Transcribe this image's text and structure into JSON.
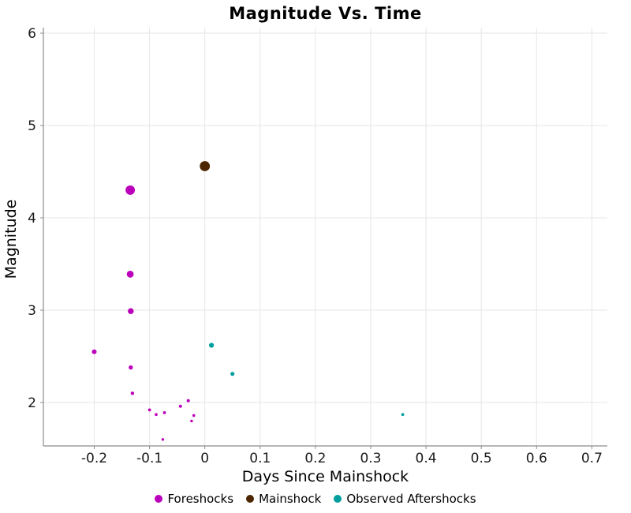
{
  "chart_data": {
    "type": "scatter",
    "title": "Magnitude Vs. Time",
    "xlabel": "Days Since Mainshock",
    "ylabel": "Magnitude",
    "xlim": [
      -0.292,
      0.728
    ],
    "ylim": [
      1.53,
      6.06
    ],
    "x_ticks": [
      -0.2,
      -0.1,
      0,
      0.1,
      0.2,
      0.3,
      0.4,
      0.5,
      0.6,
      0.7
    ],
    "y_ticks": [
      2,
      3,
      4,
      5,
      6
    ],
    "grid": true,
    "legend_position": "bottom-center",
    "marker_size_scales_with_magnitude": true,
    "colors": {
      "grid": "#e6e6e6",
      "axis": "#8c8c8c",
      "tick_text": "#1a1a1a"
    },
    "series": [
      {
        "name": "Foreshocks",
        "color": "#bb00bb",
        "points": [
          [
            -0.2,
            2.55
          ],
          [
            -0.135,
            4.3
          ],
          [
            -0.135,
            3.39
          ],
          [
            -0.134,
            2.99
          ],
          [
            -0.134,
            2.38
          ],
          [
            -0.131,
            2.1
          ],
          [
            -0.1,
            1.92
          ],
          [
            -0.088,
            1.87
          ],
          [
            -0.076,
            1.6
          ],
          [
            -0.073,
            1.89
          ],
          [
            -0.044,
            1.96
          ],
          [
            -0.03,
            2.02
          ],
          [
            -0.024,
            1.8
          ],
          [
            -0.02,
            1.86
          ]
        ]
      },
      {
        "name": "Mainshock",
        "color": "#4d2600",
        "points": [
          [
            0.0,
            4.56
          ]
        ]
      },
      {
        "name": "Observed Aftershocks",
        "color": "#009e9e",
        "points": [
          [
            0.012,
            2.62
          ],
          [
            0.05,
            2.31
          ],
          [
            0.358,
            1.87
          ]
        ]
      }
    ]
  }
}
